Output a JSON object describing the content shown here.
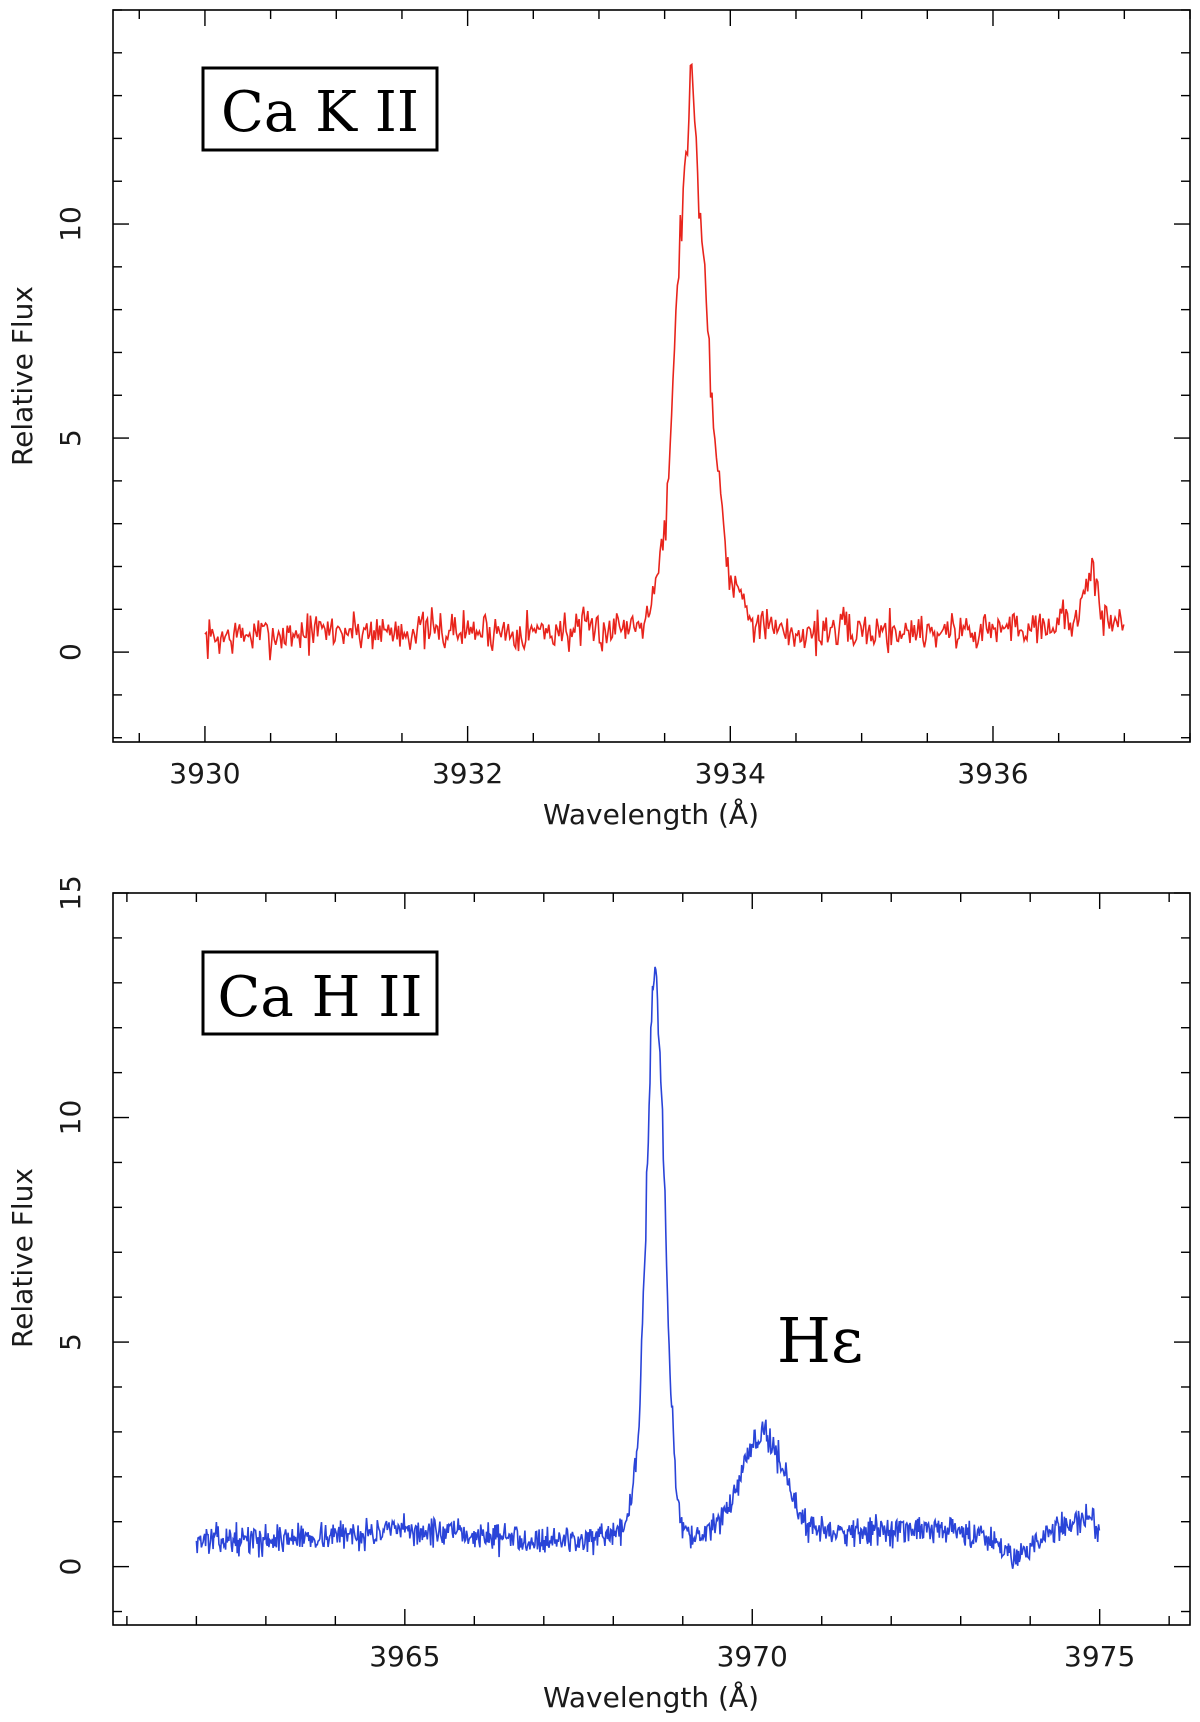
{
  "chart_data": [
    {
      "type": "line",
      "label_box": "Ca K II",
      "xlabel": "Wavelength (Å)",
      "ylabel": "Relative Flux",
      "xlim": [
        3929.3,
        3937.5
      ],
      "ylim": [
        -2.1,
        15.0
      ],
      "xticks": [
        3930,
        3932,
        3934,
        3936
      ],
      "xtick_labels": [
        "3930",
        "3932",
        "3934",
        "3936"
      ],
      "yticks": [
        0,
        5,
        10
      ],
      "ytick_labels": [
        "0",
        "5",
        "10"
      ],
      "annotations": [],
      "series": [
        {
          "color": "#e8241c",
          "x": [
            3930.0,
            3930.3,
            3930.6,
            3930.9,
            3931.2,
            3931.5,
            3931.8,
            3932.1,
            3932.4,
            3932.7,
            3933.0,
            3933.3,
            3933.4,
            3933.5,
            3933.55,
            3933.6,
            3933.65,
            3933.7,
            3933.75,
            3933.8,
            3933.85,
            3933.9,
            3933.95,
            3934.0,
            3934.1,
            3934.2,
            3934.4,
            3934.7,
            3935.0,
            3935.3,
            3935.6,
            3935.9,
            3936.2,
            3936.5,
            3936.65,
            3936.75,
            3936.85,
            3937.0
          ],
          "y": [
            0.3,
            0.4,
            0.4,
            0.5,
            0.5,
            0.5,
            0.5,
            0.5,
            0.5,
            0.5,
            0.5,
            0.7,
            1.2,
            2.8,
            5.0,
            9.0,
            11.0,
            13.5,
            11.5,
            9.0,
            6.5,
            4.5,
            3.0,
            1.8,
            1.2,
            0.7,
            0.4,
            0.5,
            0.5,
            0.5,
            0.5,
            0.5,
            0.6,
            0.7,
            0.9,
            1.8,
            0.8,
            0.6
          ],
          "noise": 0.45
        }
      ]
    },
    {
      "type": "line",
      "label_box": "Ca H II",
      "xlabel": "Wavelength (Å)",
      "ylabel": "Relative Flux",
      "xlim": [
        3960.8,
        3976.3
      ],
      "ylim": [
        -1.3,
        15.0
      ],
      "xticks": [
        3965,
        3970,
        3975
      ],
      "xtick_labels": [
        "3965",
        "3970",
        "3975"
      ],
      "yticks": [
        0,
        5,
        10,
        15
      ],
      "ytick_labels": [
        "0",
        "5",
        "10",
        "15"
      ],
      "annotations": [
        "Hε"
      ],
      "series": [
        {
          "color": "#2a44d8",
          "x": [
            3962.0,
            3963.0,
            3964.0,
            3965.0,
            3966.0,
            3967.0,
            3968.0,
            3968.2,
            3968.35,
            3968.45,
            3968.55,
            3968.6,
            3968.7,
            3968.8,
            3968.9,
            3969.0,
            3969.2,
            3969.5,
            3969.8,
            3970.0,
            3970.2,
            3970.4,
            3970.6,
            3970.8,
            3971.2,
            3972.0,
            3973.0,
            3973.5,
            3973.8,
            3974.1,
            3974.5,
            3974.8,
            3975.0
          ],
          "y": [
            0.6,
            0.6,
            0.7,
            0.8,
            0.7,
            0.6,
            0.6,
            1.0,
            2.5,
            6.5,
            12.5,
            13.6,
            10.5,
            5.0,
            1.8,
            0.9,
            0.6,
            0.9,
            1.8,
            2.7,
            3.0,
            2.4,
            1.4,
            0.9,
            0.8,
            0.8,
            0.8,
            0.6,
            0.2,
            0.6,
            0.9,
            1.1,
            0.9
          ],
          "noise": 0.3
        }
      ]
    }
  ]
}
